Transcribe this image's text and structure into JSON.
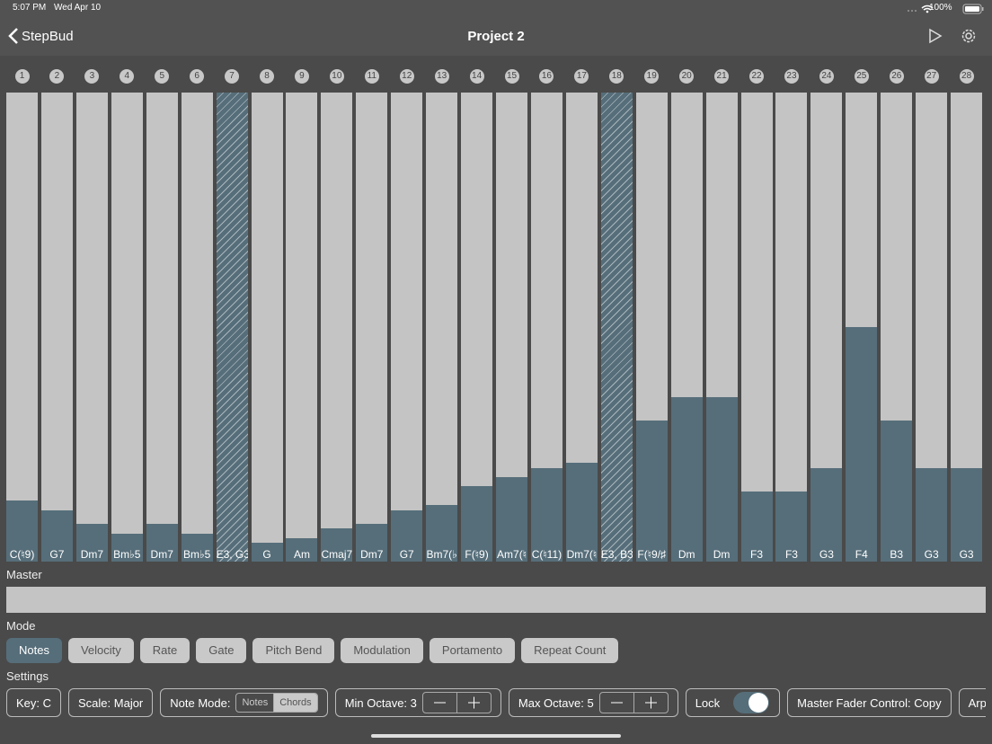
{
  "status_bar": {
    "time": "5:07 PM",
    "date": "Wed Apr 10",
    "battery": "100%"
  },
  "nav": {
    "back": "StepBud",
    "title": "Project 2"
  },
  "steps": [
    {
      "number": 1,
      "label": "C(♮9)",
      "level": 13
    },
    {
      "number": 2,
      "label": "G7",
      "level": 11
    },
    {
      "number": 3,
      "label": "Dm7",
      "level": 8
    },
    {
      "number": 4,
      "label": "Bm♭5",
      "level": 6
    },
    {
      "number": 5,
      "label": "Dm7",
      "level": 8
    },
    {
      "number": 6,
      "label": "Bm♭5",
      "level": 6
    },
    {
      "number": 7,
      "label": "E3, G3",
      "disabled": true
    },
    {
      "number": 8,
      "label": "G",
      "level": 4
    },
    {
      "number": 9,
      "label": "Am",
      "level": 5
    },
    {
      "number": 10,
      "label": "Cmaj7",
      "level": 7
    },
    {
      "number": 11,
      "label": "Dm7",
      "level": 8
    },
    {
      "number": 12,
      "label": "G7",
      "level": 11
    },
    {
      "number": 13,
      "label": "Bm7(♭",
      "level": 12
    },
    {
      "number": 14,
      "label": "F(♮9)",
      "level": 16
    },
    {
      "number": 15,
      "label": "Am7(♮",
      "level": 18
    },
    {
      "number": 16,
      "label": "C(♮11)",
      "level": 20
    },
    {
      "number": 17,
      "label": "Dm7(♮",
      "level": 21
    },
    {
      "number": 18,
      "label": "E3, B3",
      "disabled": true
    },
    {
      "number": 19,
      "label": "F(♮9/♯",
      "level": 30
    },
    {
      "number": 20,
      "label": "Dm",
      "level": 35
    },
    {
      "number": 21,
      "label": "Dm",
      "level": 35
    },
    {
      "number": 22,
      "label": "F3",
      "level": 15
    },
    {
      "number": 23,
      "label": "F3",
      "level": 15
    },
    {
      "number": 24,
      "label": "G3",
      "level": 20
    },
    {
      "number": 25,
      "label": "F4",
      "level": 50
    },
    {
      "number": 26,
      "label": "B3",
      "level": 30
    },
    {
      "number": 27,
      "label": "G3",
      "level": 20
    },
    {
      "number": 28,
      "label": "G3",
      "level": 20
    }
  ],
  "master": {
    "label": "Master"
  },
  "mode": {
    "label": "Mode",
    "options": [
      "Notes",
      "Velocity",
      "Rate",
      "Gate",
      "Pitch Bend",
      "Modulation",
      "Portamento",
      "Repeat Count"
    ],
    "selected": 0
  },
  "settings": {
    "label": "Settings",
    "key": "Key: C",
    "scale": "Scale: Major",
    "note_mode": {
      "label": "Note Mode:",
      "options": [
        "Notes",
        "Chords"
      ],
      "selected": 1
    },
    "min_octave": "Min Octave: 3",
    "max_octave": "Max Octave: 5",
    "lock": {
      "label": "Lock",
      "on": true
    },
    "master_fader": "Master Fader Control: Copy",
    "arpeggio": "Arpeggi"
  }
}
